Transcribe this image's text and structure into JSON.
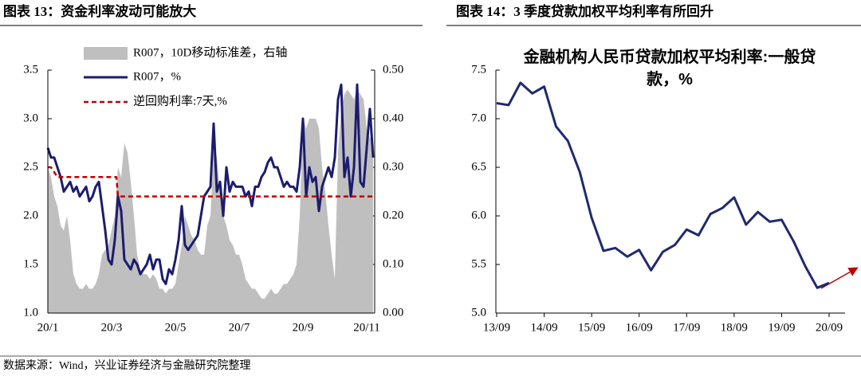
{
  "chart_data": [
    {
      "type": "line",
      "heading": "图表 13：资金利率波动可能放大",
      "x": [
        0,
        0.1,
        0.2,
        0.3,
        0.4,
        0.5,
        0.6,
        0.7,
        0.8,
        0.9,
        1,
        1.1,
        1.2,
        1.3,
        1.4,
        1.5,
        1.6,
        1.7,
        1.8,
        1.9,
        2,
        2.1,
        2.2,
        2.3,
        2.4,
        2.5,
        2.6,
        2.7,
        2.8,
        2.9,
        3,
        3.1,
        3.2,
        3.3,
        3.4,
        3.5,
        3.6,
        3.7,
        3.8,
        3.9,
        4,
        4.1,
        4.2,
        4.3,
        4.4,
        4.5,
        4.6,
        4.7,
        4.8,
        4.9,
        5,
        5.1,
        5.2,
        5.3,
        5.4,
        5.5,
        5.6,
        5.7,
        5.8,
        5.9,
        6,
        6.1,
        6.2,
        6.3,
        6.4,
        6.5,
        6.6,
        6.7,
        6.8,
        6.9,
        7,
        7.1,
        7.2,
        7.3,
        7.4,
        7.5,
        7.6,
        7.7,
        7.8,
        7.9,
        8,
        8.1,
        8.2,
        8.3,
        8.4,
        8.5,
        8.6,
        8.7,
        8.8,
        8.9,
        9,
        9.1,
        9.2,
        9.3,
        9.4,
        9.5,
        9.6,
        9.7,
        9.8,
        9.9,
        10,
        10.1,
        10.2
      ],
      "xlim": [
        0,
        10.25
      ],
      "xticks": [
        {
          "value": 0,
          "label": "20/1"
        },
        {
          "value": 2,
          "label": "20/3"
        },
        {
          "value": 4,
          "label": "20/5"
        },
        {
          "value": 6,
          "label": "20/7"
        },
        {
          "value": 8,
          "label": "20/9"
        },
        {
          "value": 10,
          "label": "20/11"
        }
      ],
      "ylim": [
        1,
        3.5
      ],
      "yticks": [
        {
          "value": 1,
          "label": "1.0"
        },
        1.5,
        {
          "value": 2,
          "label": "2.0"
        },
        2.5,
        {
          "value": 3,
          "label": "3.0"
        },
        3.5
      ],
      "y2lim": [
        0,
        0.5
      ],
      "y2ticks": [
        {
          "value": 0,
          "label": "0.00"
        },
        {
          "value": 0.1,
          "label": "0.10"
        },
        {
          "value": 0.2,
          "label": "0.20"
        },
        {
          "value": 0.3,
          "label": "0.30"
        },
        {
          "value": 0.4,
          "label": "0.40"
        },
        {
          "value": 0.5,
          "label": "0.50"
        }
      ],
      "series": [
        {
          "name": "R007，10D移动标准差，右轴",
          "type": "area",
          "axis": "y2",
          "color": "#bfbfbf",
          "values": [
            0.3,
            0.28,
            0.24,
            0.22,
            0.18,
            0.17,
            0.2,
            0.15,
            0.08,
            0.06,
            0.05,
            0.05,
            0.06,
            0.05,
            0.05,
            0.06,
            0.08,
            0.12,
            0.13,
            0.14,
            0.17,
            0.2,
            0.3,
            0.28,
            0.35,
            0.33,
            0.27,
            0.2,
            0.12,
            0.09,
            0.08,
            0.08,
            0.07,
            0.08,
            0.07,
            0.05,
            0.05,
            0.04,
            0.05,
            0.05,
            0.06,
            0.1,
            0.14,
            0.2,
            0.18,
            0.16,
            0.15,
            0.13,
            0.12,
            0.12,
            0.18,
            0.2,
            0.34,
            0.32,
            0.25,
            0.2,
            0.18,
            0.15,
            0.14,
            0.12,
            0.12,
            0.1,
            0.07,
            0.06,
            0.05,
            0.05,
            0.04,
            0.03,
            0.03,
            0.04,
            0.05,
            0.04,
            0.04,
            0.05,
            0.06,
            0.06,
            0.07,
            0.08,
            0.1,
            0.2,
            0.4,
            0.38,
            0.4,
            0.4,
            0.4,
            0.38,
            0.3,
            0.25,
            0.18,
            0.12,
            0.07,
            0.33,
            0.42,
            0.45,
            0.46,
            0.45,
            0.44,
            0.46,
            0.45,
            0.44,
            0.38,
            0.36,
            0.36
          ]
        },
        {
          "name": "R007，%",
          "type": "line",
          "color": "#1c1c6e",
          "values": [
            2.7,
            2.6,
            2.6,
            2.5,
            2.4,
            2.25,
            2.3,
            2.35,
            2.25,
            2.3,
            2.2,
            2.25,
            2.3,
            2.15,
            2.2,
            2.3,
            2.35,
            2.1,
            1.85,
            1.55,
            1.5,
            1.75,
            2.2,
            2.05,
            1.55,
            1.5,
            1.45,
            1.55,
            1.5,
            1.4,
            1.45,
            1.5,
            1.6,
            1.45,
            1.55,
            1.55,
            1.35,
            1.3,
            1.45,
            1.4,
            1.55,
            1.75,
            2.1,
            1.7,
            1.65,
            1.7,
            1.75,
            1.8,
            2,
            2.2,
            2.25,
            2.3,
            2.95,
            2.25,
            2.35,
            2,
            2.5,
            2.25,
            2.35,
            2.3,
            2.3,
            2.3,
            2.2,
            2.25,
            2.1,
            2.3,
            2.3,
            2.4,
            2.45,
            2.55,
            2.6,
            2.5,
            2.5,
            2.4,
            2.3,
            2.35,
            2.3,
            2.3,
            2.25,
            2.5,
            3,
            2.2,
            2.5,
            2.35,
            2.4,
            2.05,
            2.3,
            2.4,
            2.5,
            2.4,
            2.6,
            3.2,
            3.35,
            2.4,
            2.6,
            2.2,
            2.5,
            3.35,
            2.35,
            2.3,
            2.7,
            3.1,
            2.6
          ]
        },
        {
          "name": "逆回购利率:7天,%",
          "type": "line",
          "dashed": true,
          "color": "#c00000",
          "x": [
            0,
            0.1,
            0.2,
            0.3,
            2.15,
            2.2,
            10.2
          ],
          "values": [
            2.5,
            2.5,
            2.45,
            2.4,
            2.4,
            2.2,
            2.2
          ]
        }
      ]
    },
    {
      "type": "line",
      "heading": "图表 14：3 季度贷款加权平均利率有所回升",
      "title": "金融机构人民币贷款加权平均利率:一般贷款，%",
      "categories": [
        "13/09",
        null,
        null,
        null,
        "14/09",
        null,
        null,
        null,
        "15/09",
        null,
        null,
        null,
        "16/09",
        null,
        null,
        null,
        "17/09",
        null,
        null,
        null,
        "18/09",
        null,
        null,
        null,
        "19/09",
        null,
        null,
        null,
        "20/09"
      ],
      "values": [
        7.16,
        7.14,
        7.37,
        7.26,
        7.33,
        6.92,
        6.77,
        6.45,
        5.98,
        5.64,
        5.67,
        5.58,
        5.65,
        5.44,
        5.63,
        5.7,
        5.86,
        5.8,
        6.02,
        6.08,
        6.19,
        5.91,
        6.04,
        5.94,
        5.96,
        5.74,
        5.48,
        5.26,
        5.31
      ],
      "color": "#1f2a6e",
      "ylim": [
        5,
        7.5
      ],
      "yticks": [
        {
          "value": 5,
          "label": "5.0"
        },
        5.5,
        {
          "value": 6,
          "label": "6.0"
        },
        6.5,
        {
          "value": 7,
          "label": "7.0"
        },
        7.5
      ]
    }
  ],
  "source": "数据来源：Wind，兴业证券经济与金融研究院整理"
}
